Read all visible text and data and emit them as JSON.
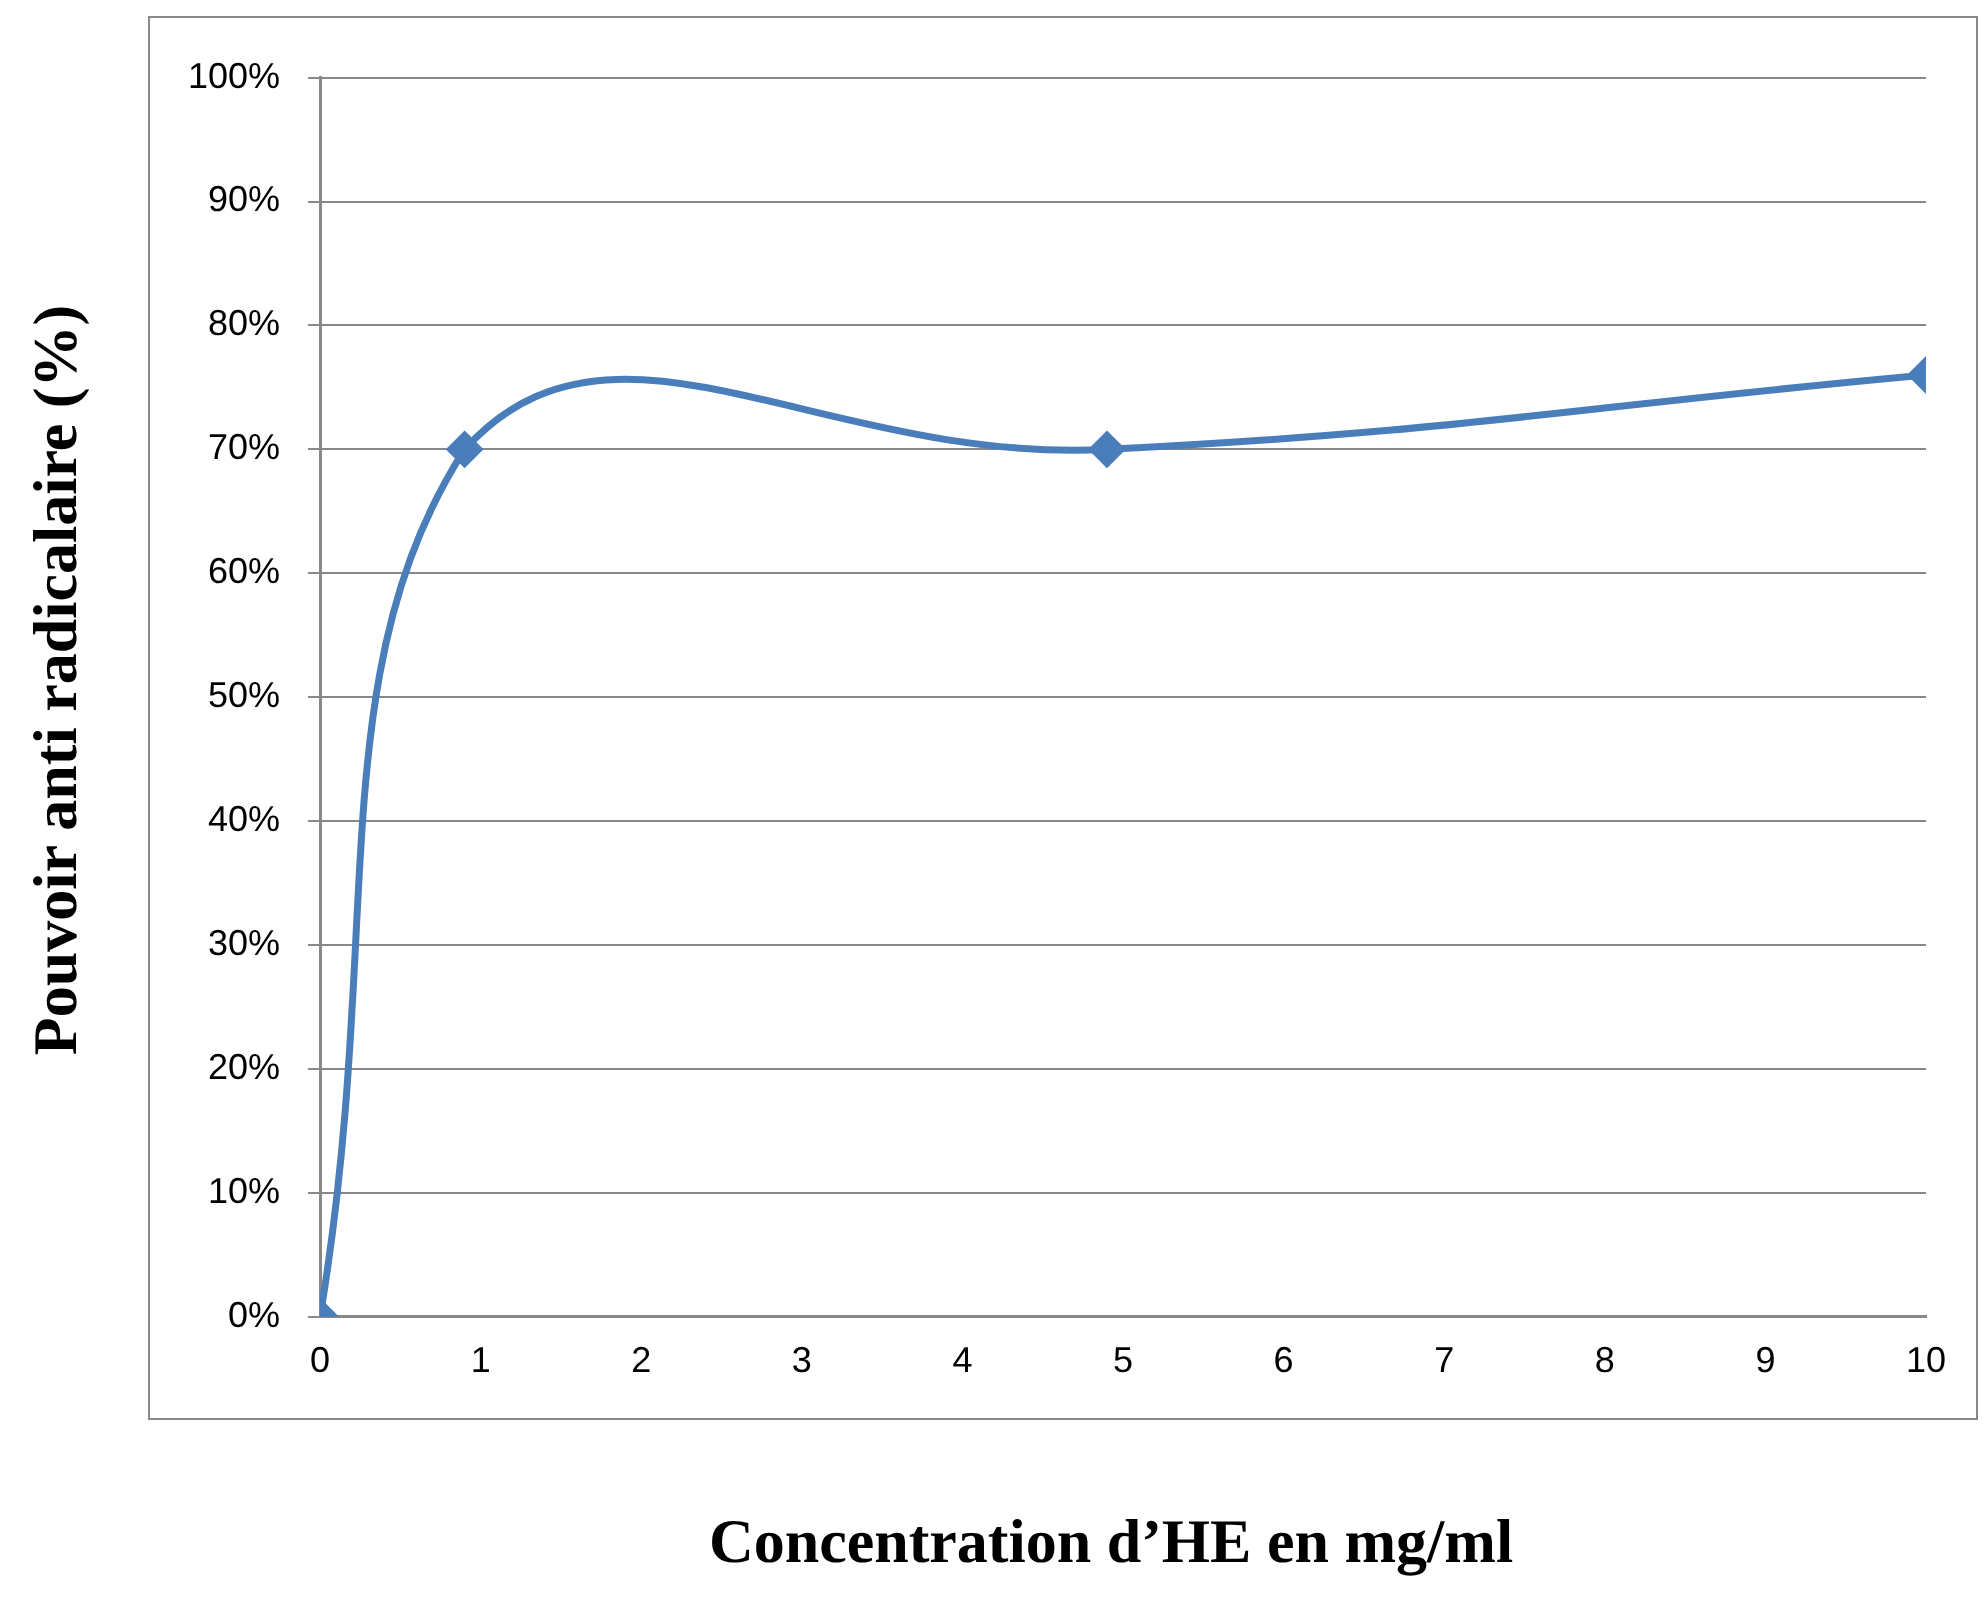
{
  "chart_data": {
    "type": "line",
    "xlabel": "Concentration d’HE en mg/ml",
    "ylabel": "Pouvoir anti radicalaire (%)",
    "series": [
      {
        "color": "#4a7ebb",
        "x": [
          0,
          0.9,
          4.9,
          10
        ],
        "values": [
          0,
          70,
          70,
          76
        ]
      }
    ],
    "xlim": [
      0,
      10
    ],
    "xticks": [
      0,
      1,
      2,
      3,
      4,
      5,
      6,
      7,
      8,
      9,
      10
    ],
    "ylim": [
      0,
      100
    ],
    "yticks": [
      {
        "value": 0,
        "label": "0%"
      },
      {
        "value": 10,
        "label": "10%"
      },
      {
        "value": 20,
        "label": "20%"
      },
      {
        "value": 30,
        "label": "30%"
      },
      {
        "value": 40,
        "label": "40%"
      },
      {
        "value": 50,
        "label": "50%"
      },
      {
        "value": 60,
        "label": "60%"
      },
      {
        "value": 70,
        "label": "70%"
      },
      {
        "value": 80,
        "label": "80%"
      },
      {
        "value": 90,
        "label": "90%"
      },
      {
        "value": 100,
        "label": "100%"
      }
    ],
    "grid": "y",
    "legend": false,
    "marker": "diamond",
    "line_style": "solid"
  }
}
